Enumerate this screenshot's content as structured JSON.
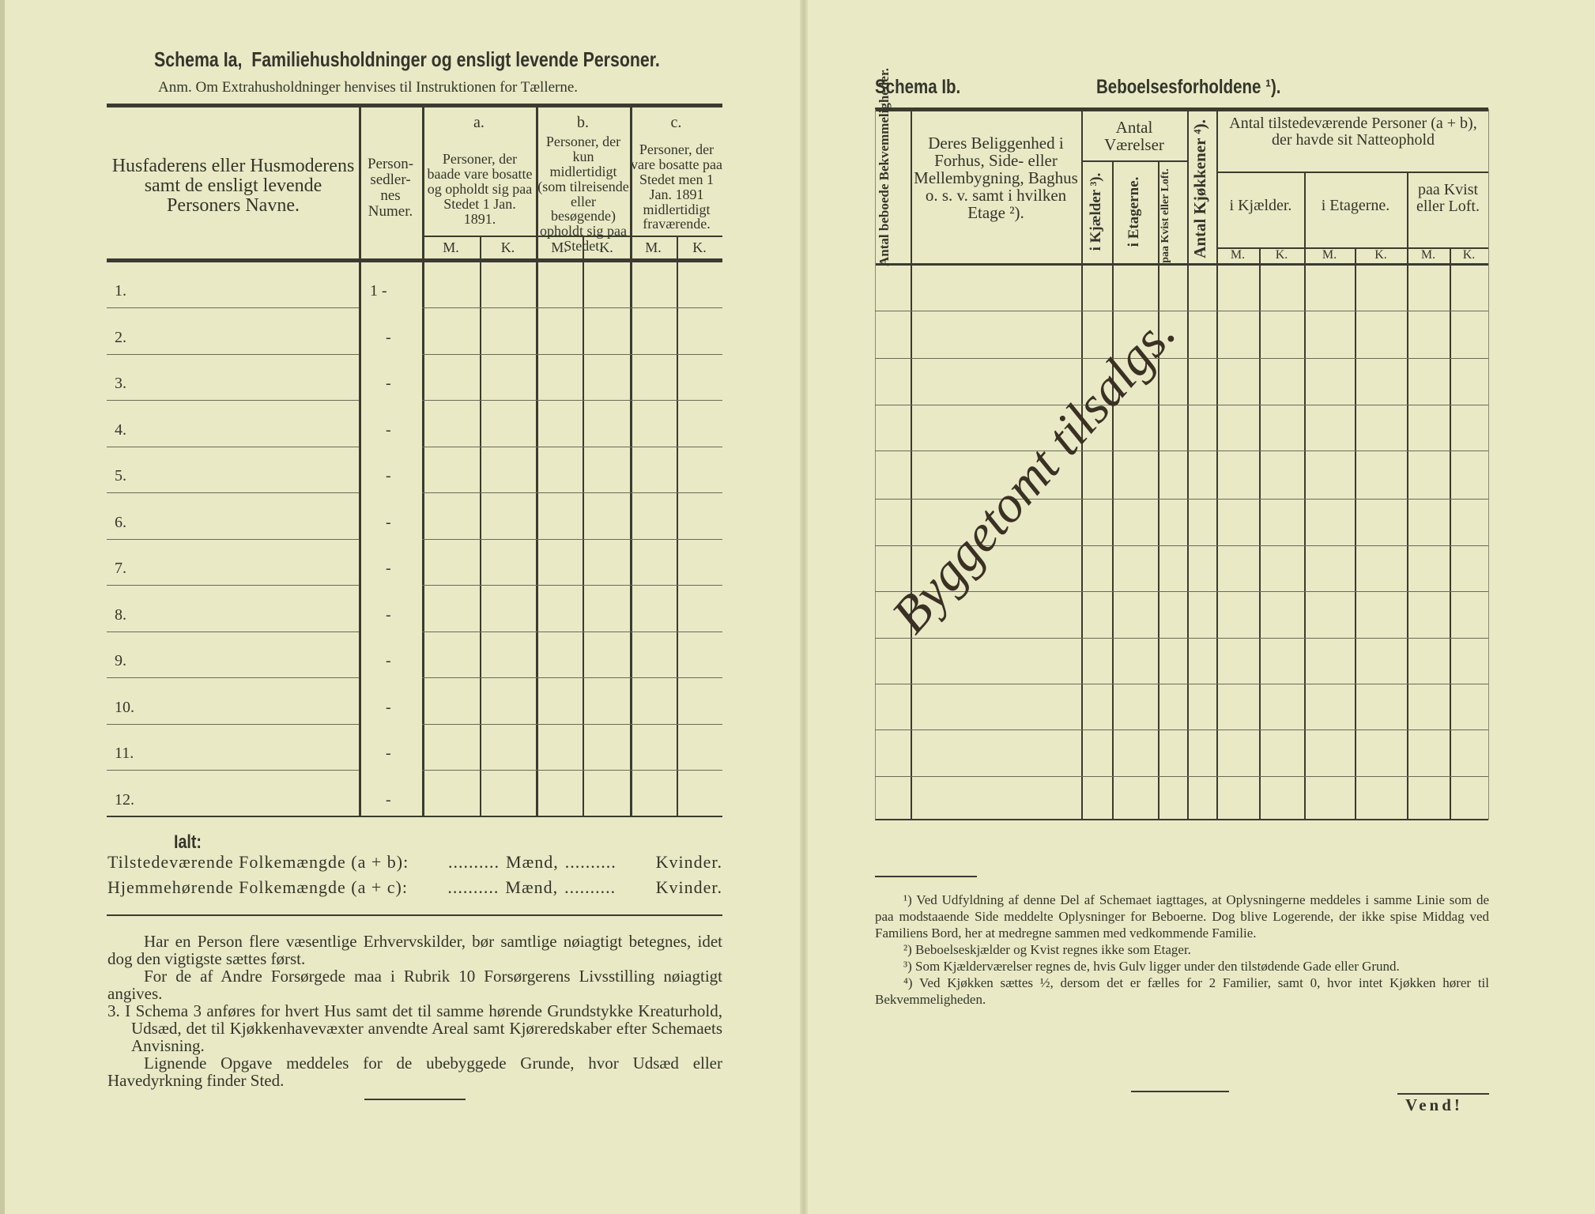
{
  "left": {
    "title_label": "Schema Ia,",
    "title": "Familiehusholdninger og ensligt levende Personer.",
    "note": "Anm. Om Extrahusholdninger henvises til Instruktionen for Tællerne.",
    "col_name": "Husfaderens eller Husmoderens samt de ensligt levende Personers Navne.",
    "col_number": "Person-sedler-nes Numer.",
    "groups": [
      {
        "letter": "a.",
        "text": "Personer, der baade vare bosatte og opholdt sig paa Stedet 1 Jan. 1891."
      },
      {
        "letter": "b.",
        "text": "Personer, der kun midlertidigt (som tilreisende eller besøgende) opholdt sig paa Stedet."
      },
      {
        "letter": "c.",
        "text": "Personer, der vare bosatte paa Stedet men 1 Jan. 1891 midlertidigt fraværende."
      }
    ],
    "mk": [
      "M.",
      "K.",
      "M.",
      "K.",
      "M.",
      "K."
    ],
    "rows": [
      {
        "label": "1.",
        "number": "1 -"
      },
      {
        "label": "2.",
        "number": "-"
      },
      {
        "label": "3.",
        "number": "-"
      },
      {
        "label": "4.",
        "number": "-"
      },
      {
        "label": "5.",
        "number": "-"
      },
      {
        "label": "6.",
        "number": "-"
      },
      {
        "label": "7.",
        "number": "-"
      },
      {
        "label": "8.",
        "number": "-"
      },
      {
        "label": "9.",
        "number": "-"
      },
      {
        "label": "10.",
        "number": "-"
      },
      {
        "label": "11.",
        "number": "-"
      },
      {
        "label": "12.",
        "number": "-"
      }
    ],
    "ialt": "Ialt:",
    "totals": [
      {
        "label": "Tilstedeværende Folkemængde (a + b):",
        "dots1": "..........",
        "men": "Mænd,",
        "dots2": "..........",
        "women": "Kvinder."
      },
      {
        "label": "Hjemmehørende Folkemængde (a + c):",
        "dots1": "..........",
        "men": "Mænd,",
        "dots2": "..........",
        "women": "Kvinder."
      }
    ],
    "paragraphs": [
      "Har en Person flere væsentlige Erhvervskilder, bør samtlige nøiagtigt betegnes, idet dog den vigtigste sættes først.",
      "For de af Andre Forsørgede maa i Rubrik 10 Forsørgerens Livsstilling nøiagtigt angives.",
      "3. I Schema 3 anføres for hvert Hus samt det til samme hørende Grundstykke Kreaturhold, Udsæd, det til Kjøkkenhavevæxter anvendte Areal samt Kjøreredskaber efter Schemaets Anvisning.",
      "Lignende Opgave meddeles for de ubebyggede Grunde, hvor Udsæd eller Havedyrkning finder Sted."
    ]
  },
  "right": {
    "title_label": "Schema Ib.",
    "title": "Beboelsesforholdene ¹).",
    "col_units": "Antal beboede Bekvemmeligheder.",
    "col_location": "Deres Beliggenhed i Forhus, Side- eller Mellembygning, Baghus o. s. v. samt i hvilken Etage ²).",
    "rooms_header": "Antal Værelser",
    "rooms_cols": [
      "i Kjælder ³).",
      "i Etagerne.",
      "paa Kvist eller Loft."
    ],
    "kitchens": "Antal Kjøkkener ⁴).",
    "persons_header": "Antal tilstedeværende Personer (a + b), der havde sit Natteophold",
    "persons_cols": [
      "i Kjælder.",
      "i Etagerne.",
      "paa Kvist eller Loft."
    ],
    "mk": [
      "M.",
      "K.",
      "M.",
      "K.",
      "M.",
      "K."
    ],
    "handwriting": "Byggetomt tilsalgs.",
    "footnotes": [
      "¹) Ved Udfyldning af denne Del af Schemaet iagttages, at Oplysningerne meddeles i samme Linie som de paa modstaaende Side meddelte Oplysninger for Beboerne. Dog blive Logerende, der ikke spise Middag ved Familiens Bord, her at medregne sammen med vedkommende Familie.",
      "²) Beboelseskjælder og Kvist regnes ikke som Etager.",
      "³) Som Kjælderværelser regnes de, hvis Gulv ligger under den tilstødende Gade eller Grund.",
      "⁴) Ved Kjøkken sættes ½, dersom det er fælles for 2 Familier, samt 0, hvor intet Kjøkken hører til Bekvemmeligheden."
    ],
    "vend": "Vend!"
  }
}
